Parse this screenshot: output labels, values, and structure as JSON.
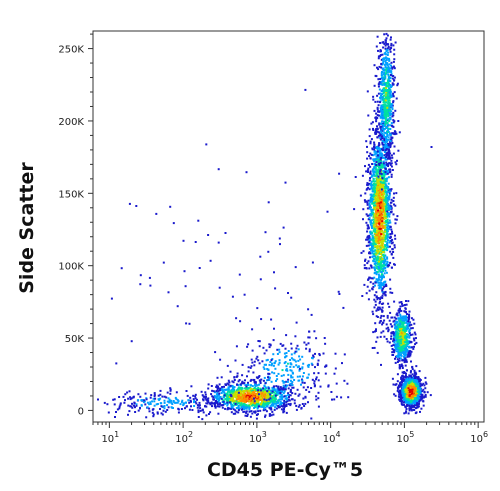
{
  "chart_data": {
    "type": "scatter",
    "title": "",
    "xlabel": "CD45 PE-Cy™5",
    "ylabel": "Side Scatter",
    "x_scale": "log",
    "x_range": [
      6,
      1200000
    ],
    "y_range": [
      -8000,
      262144
    ],
    "x_ticks": [
      {
        "value": 10,
        "base": "10",
        "exp": "1"
      },
      {
        "value": 100,
        "base": "10",
        "exp": "2"
      },
      {
        "value": 1000,
        "base": "10",
        "exp": "3"
      },
      {
        "value": 10000,
        "base": "10",
        "exp": "4"
      },
      {
        "value": 100000,
        "base": "10",
        "exp": "5"
      },
      {
        "value": 1000000,
        "base": "10",
        "exp": "6"
      }
    ],
    "y_ticks": [
      {
        "value": 0,
        "label": "0"
      },
      {
        "value": 50000,
        "label": "50K"
      },
      {
        "value": 100000,
        "label": "100K"
      },
      {
        "value": 150000,
        "label": "150K"
      },
      {
        "value": 200000,
        "label": "200K"
      },
      {
        "value": 250000,
        "label": "250K"
      }
    ],
    "grid": false,
    "legend": "none",
    "density_colors": [
      "#1a1acc",
      "#00a0ff",
      "#00e0a0",
      "#c8e000",
      "#ff8c00",
      "#e00000"
    ],
    "populations": [
      {
        "x_center": 800,
        "y_center": 10000,
        "x_spread_decades": 0.28,
        "y_spread": 5000,
        "count": 1100,
        "peak": 0.85
      },
      {
        "x_center": 45000,
        "y_center": 135000,
        "x_spread_decades": 0.08,
        "y_spread": 30000,
        "count": 1700,
        "peak": 0.8
      },
      {
        "x_center": 55000,
        "y_center": 215000,
        "x_spread_decades": 0.06,
        "y_spread": 25000,
        "count": 650,
        "peak": 0.45
      },
      {
        "x_center": 90000,
        "y_center": 52000,
        "x_spread_decades": 0.07,
        "y_spread": 10000,
        "count": 600,
        "peak": 0.6
      },
      {
        "x_center": 120000,
        "y_center": 14000,
        "x_spread_decades": 0.07,
        "y_spread": 5000,
        "count": 1300,
        "peak": 1.0
      },
      {
        "x_center": 2500,
        "y_center": 30000,
        "x_spread_decades": 0.35,
        "y_spread": 12000,
        "count": 280,
        "peak": 0.3
      },
      {
        "x_center": 60,
        "y_center": 6000,
        "x_spread_decades": 0.45,
        "y_spread": 4000,
        "count": 230,
        "peak": 0.25
      },
      {
        "x_center": 600,
        "y_center": 80000,
        "x_spread_decades": 1.0,
        "y_spread": 60000,
        "count": 90,
        "peak": 0.1
      }
    ]
  }
}
